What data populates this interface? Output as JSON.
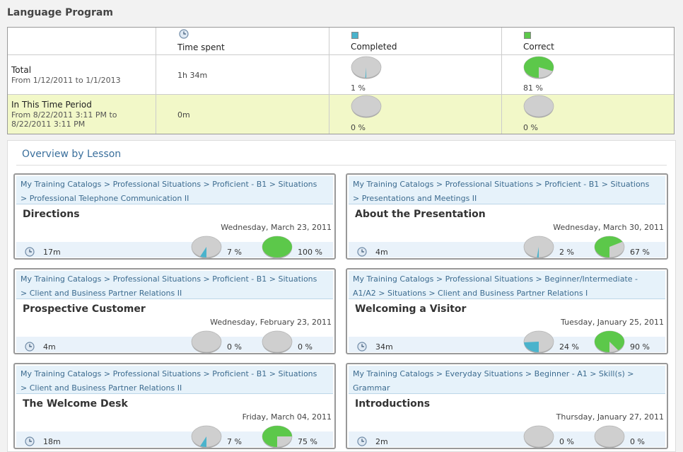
{
  "page_title": "Language Program",
  "summary": {
    "headers": {
      "time_spent": "Time spent",
      "completed": "Completed",
      "correct": "Correct"
    },
    "total": {
      "label": "Total",
      "range": "From 1/12/2011 to 1/1/2013",
      "time": "1h 34m",
      "completed_pct": "1 %",
      "correct_pct": "81 %",
      "completed_frac": 0.01,
      "correct_frac": 0.81
    },
    "period": {
      "label": "In This Time Period",
      "range_line1": "From 8/22/2011 3:11 PM to",
      "range_line2": "8/22/2011 3:11 PM",
      "time": "0m",
      "completed_pct": "0 %",
      "correct_pct": "0 %",
      "completed_frac": 0,
      "correct_frac": 0
    }
  },
  "overview": {
    "title": "Overview by Lesson",
    "cards": [
      {
        "crumb1": "My Training Catalogs > Professional Situations > Proficient - B1 > Situations",
        "crumb2": "> Professional Telephone Communication II",
        "lesson": "Directions",
        "date": "Wednesday, March 23, 2011",
        "time": "17m",
        "completed_pct": "7 %",
        "correct_pct": "100 %",
        "completed_frac": 0.07,
        "correct_frac": 1.0
      },
      {
        "crumb1": "My Training Catalogs > Professional Situations > Proficient - B1 > Situations",
        "crumb2": "> Presentations and Meetings II",
        "lesson": "About the Presentation",
        "date": "Wednesday, March 30, 2011",
        "time": "4m",
        "completed_pct": "2 %",
        "correct_pct": "67 %",
        "completed_frac": 0.02,
        "correct_frac": 0.67
      },
      {
        "crumb1": "My Training Catalogs > Professional Situations > Proficient - B1 > Situations",
        "crumb2": "> Client and Business Partner Relations II",
        "lesson": "Prospective Customer",
        "date": "Wednesday, February 23, 2011",
        "time": "4m",
        "completed_pct": "0 %",
        "correct_pct": "0 %",
        "completed_frac": 0,
        "correct_frac": 0
      },
      {
        "crumb1": "My Training Catalogs > Professional Situations > Beginner/Intermediate -",
        "crumb2": "A1/A2 > Situations > Client and Business Partner Relations I",
        "lesson": "Welcoming a Visitor",
        "date": "Tuesday, January 25, 2011",
        "time": "34m",
        "completed_pct": "24 %",
        "correct_pct": "90 %",
        "completed_frac": 0.24,
        "correct_frac": 0.9
      },
      {
        "crumb1": "My Training Catalogs > Professional Situations > Proficient - B1 > Situations",
        "crumb2": "> Client and Business Partner Relations II",
        "lesson": "The Welcome Desk",
        "date": "Friday, March 04, 2011",
        "time": "18m",
        "completed_pct": "7 %",
        "correct_pct": "75 %",
        "completed_frac": 0.07,
        "correct_frac": 0.75
      },
      {
        "crumb1": "My Training Catalogs > Everyday Situations > Beginner - A1 > Skill(s) >",
        "crumb2": "Grammar",
        "lesson": "Introductions",
        "date": "Thursday, January 27, 2011",
        "time": "2m",
        "completed_pct": "0 %",
        "correct_pct": "0 %",
        "completed_frac": 0,
        "correct_frac": 0
      }
    ]
  },
  "colors": {
    "completed": "#4ab3cc",
    "correct": "#5cc84a",
    "pie_base": "#cfcfcf",
    "link": "#3c6b8f"
  },
  "icons": {
    "time": "clock-icon",
    "completed": "blue-square-icon",
    "correct": "green-square-icon"
  }
}
